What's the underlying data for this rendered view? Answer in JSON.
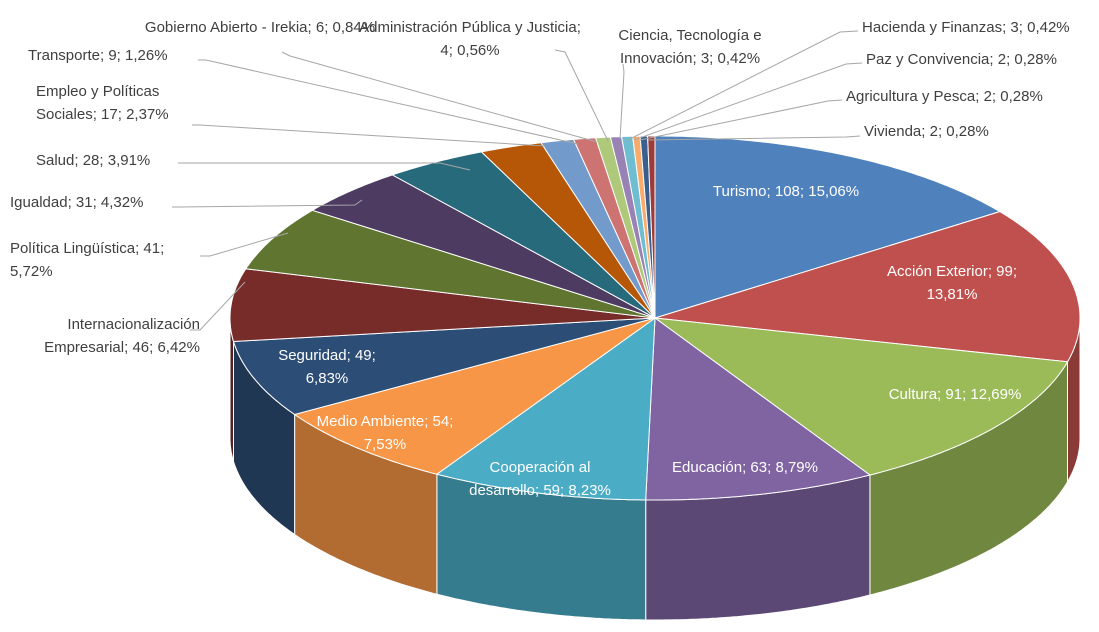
{
  "chart_data": {
    "type": "pie",
    "categories": [
      "Turismo",
      "Acción Exterior",
      "Cultura",
      "Educación",
      "Cooperación al desarrollo",
      "Medio Ambiente",
      "Seguridad",
      "Internacionalización Empresarial",
      "Política Lingüística",
      "Igualdad",
      "Salud",
      "Empleo y Políticas Sociales",
      "Transporte",
      "Gobierno Abierto - Irekia",
      "Administración Pública y Justicia",
      "Ciencia, Tecnología e Innovación",
      "Hacienda y Finanzas",
      "Paz y Convivencia",
      "Agricultura y Pesca",
      "Vivienda"
    ],
    "values": [
      108,
      99,
      91,
      63,
      59,
      54,
      49,
      46,
      41,
      31,
      28,
      17,
      9,
      6,
      4,
      3,
      3,
      2,
      2,
      2
    ],
    "value_labels": [
      "108; 15,06%",
      "99; 13,81%",
      "91; 12,69%",
      "63; 8,79%",
      "59; 8,23%",
      "54; 7,53%",
      "49; 6,83%",
      "46; 6,42%",
      "41; 5,72%",
      "31; 4,32%",
      "28; 3,91%",
      "17; 2,37%",
      "9; 1,26%",
      "6; 0,84%",
      "4; 0,56%",
      "3; 0,42%",
      "3; 0,42%",
      "2; 0,28%",
      "2; 0,28%",
      "2; 0,28%"
    ],
    "label_separator": "; ",
    "colors": [
      "#4f81bd",
      "#c0504d",
      "#9bbb59",
      "#8064a2",
      "#4bacc6",
      "#f79646",
      "#2c4d75",
      "#772c2a",
      "#5f7530",
      "#4d3b62",
      "#276a7c",
      "#b65708",
      "#729aca",
      "#cd7371",
      "#afc97a",
      "#9983b5",
      "#6fbdd1",
      "#f9ab6b",
      "#3a5f8e",
      "#9c3b39"
    ]
  }
}
